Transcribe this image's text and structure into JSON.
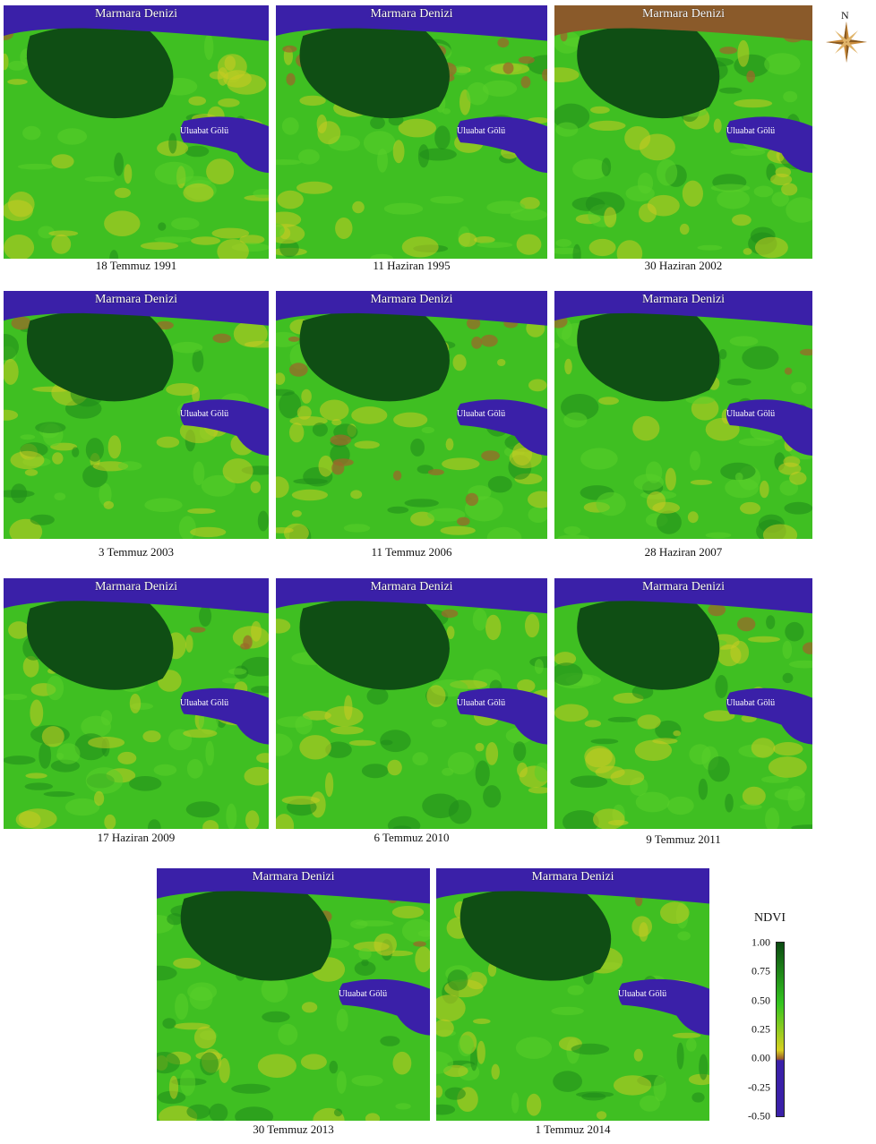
{
  "panels": [
    {
      "caption": "18 Temmuz 1991",
      "sea": "Marmara Denizi",
      "lake": "Uluabat Gölü"
    },
    {
      "caption": "11 Haziran 1995",
      "sea": "Marmara Denizi",
      "lake": "Uluabat Gölü"
    },
    {
      "caption": "30 Haziran 2002",
      "sea": "Marmara Denizi",
      "lake": "Uluabat Gölü"
    },
    {
      "caption": "3 Temmuz 2003",
      "sea": "Marmara Denizi",
      "lake": "Uluabat Gölü"
    },
    {
      "caption": "11 Temmuz 2006",
      "sea": "Marmara Denizi",
      "lake": "Uluabat Gölü"
    },
    {
      "caption": "28 Haziran 2007",
      "sea": "Marmara Denizi",
      "lake": "Uluabat Gölü"
    },
    {
      "caption": "17 Haziran 2009",
      "sea": "Marmara Denizi",
      "lake": "Uluabat Gölü"
    },
    {
      "caption": "6 Temmuz 2010",
      "sea": "Marmara Denizi",
      "lake": "Uluabat Gölü"
    },
    {
      "caption": "9 Temmuz 2011",
      "sea": "Marmara Denizi",
      "lake": "Uluabat Gölü"
    },
    {
      "caption": "30 Temmuz 2013",
      "sea": "Marmara Denizi",
      "lake": "Uluabat Gölü"
    },
    {
      "caption": "1 Temmuz 2014",
      "sea": "Marmara Denizi",
      "lake": "Uluabat Gölü"
    }
  ],
  "north_arrow": {
    "label": "N",
    "icon": "compass-rose-icon"
  },
  "legend": {
    "title": "NDVI",
    "ticks": [
      "1.00",
      "0.75",
      "0.50",
      "0.25",
      "0.00",
      "-0.25",
      "-0.50"
    ],
    "colors": {
      "high": "#0b4a12",
      "mid": "#33c41f",
      "low_veg": "#d8d020",
      "bare": "#9a5a2a",
      "water": "#3a20a8"
    }
  }
}
